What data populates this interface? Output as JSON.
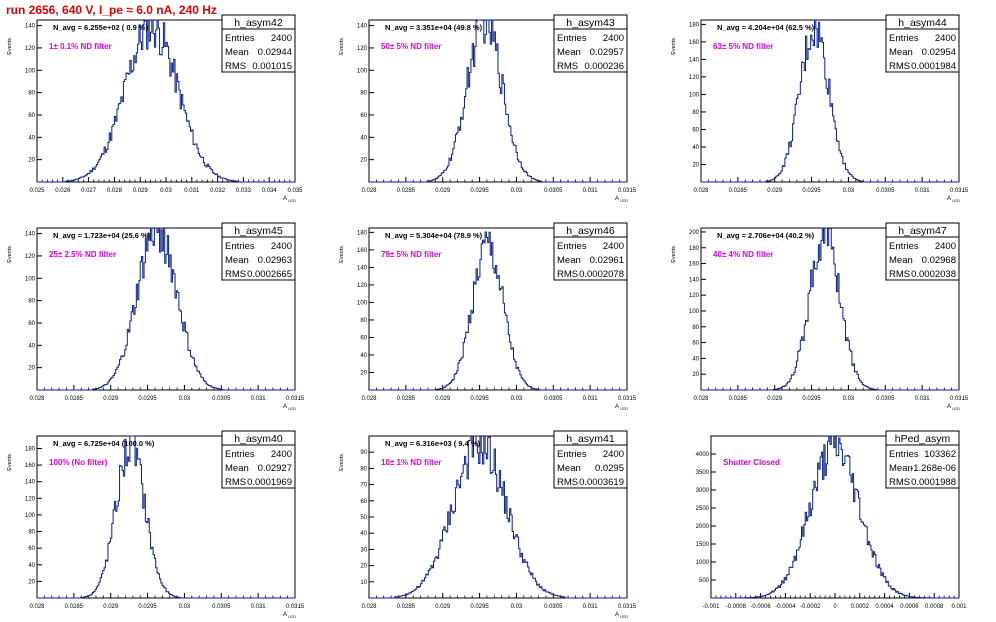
{
  "page": {
    "title": "run 2656,   640 V, I_pe ≈ 6.0 nA, 240 Hz"
  },
  "chart_data": [
    {
      "type": "histogram",
      "name": "h_asym42",
      "navg": "N_avg = 6.255e+02 ( 0.9 %)",
      "annotation": "1± 0.1% ND filter",
      "entries": "2400",
      "mean": "0.02944",
      "rms": "0.001015",
      "mean_val": 0.02944,
      "rms_val": 0.001015,
      "peak": 140,
      "xlim": [
        0.025,
        0.035
      ],
      "ylim": [
        0,
        145
      ],
      "xticks": [
        "0.025",
        "0.026",
        "0.027",
        "0.028",
        "0.029",
        "0.03",
        "0.031",
        "0.032",
        "0.033",
        "0.034",
        "0.035"
      ],
      "yticks": [
        "20",
        "40",
        "60",
        "80",
        "100",
        "120",
        "140"
      ],
      "xlabel": "A_LED",
      "ylabel": "Events"
    },
    {
      "type": "histogram",
      "name": "h_asym43",
      "navg": "N_avg = 3.351e+04 (49.8 %)",
      "annotation": "50± 5% ND filter",
      "entries": "2400",
      "mean": "0.02957",
      "rms": "0.000236",
      "mean_val": 0.02957,
      "rms_val": 0.000236,
      "peak": 145,
      "xlim": [
        0.028,
        0.0315
      ],
      "ylim": [
        0,
        145
      ],
      "xticks": [
        "0.028",
        "0.0285",
        "0.029",
        "0.0295",
        "0.03",
        "0.0305",
        "0.031",
        "0.0315"
      ],
      "yticks": [
        "20",
        "40",
        "60",
        "80",
        "100",
        "120",
        "140"
      ],
      "xlabel": "A_LED",
      "ylabel": "Events"
    },
    {
      "type": "histogram",
      "name": "h_asym44",
      "navg": "N_avg = 4.204e+04 (62.5 %)",
      "annotation": "63± 5% ND filter",
      "entries": "2400",
      "mean": "0.02954",
      "rms": "0.0001984",
      "mean_val": 0.02954,
      "rms_val": 0.0001984,
      "peak": 175,
      "xlim": [
        0.028,
        0.0315
      ],
      "ylim": [
        0,
        185
      ],
      "xticks": [
        "0.028",
        "0.0285",
        "0.029",
        "0.0295",
        "0.03",
        "0.0305",
        "0.031",
        "0.0315"
      ],
      "yticks": [
        "20",
        "40",
        "60",
        "80",
        "100",
        "120",
        "140",
        "160",
        "180"
      ],
      "xlabel": "A_LED",
      "ylabel": "Events"
    },
    {
      "type": "histogram",
      "name": "h_asym45",
      "navg": "N_avg = 1.723e+04 (25.6 %)",
      "annotation": "25± 2.5% ND filter",
      "entries": "2400",
      "mean": "0.02963",
      "rms": "0.0002665",
      "mean_val": 0.02963,
      "rms_val": 0.0002665,
      "peak": 145,
      "xlim": [
        0.028,
        0.0315
      ],
      "ylim": [
        0,
        145
      ],
      "xticks": [
        "0.028",
        "0.0285",
        "0.029",
        "0.0295",
        "0.03",
        "0.0305",
        "0.031",
        "0.0315"
      ],
      "yticks": [
        "20",
        "40",
        "60",
        "80",
        "100",
        "120",
        "140"
      ],
      "xlabel": "A_LED",
      "ylabel": "Events"
    },
    {
      "type": "histogram",
      "name": "h_asym46",
      "navg": "N_avg = 5.304e+04 (78.9 %)",
      "annotation": "79± 5% ND filter",
      "entries": "2400",
      "mean": "0.02961",
      "rms": "0.0002078",
      "mean_val": 0.02961,
      "rms_val": 0.0002078,
      "peak": 165,
      "xlim": [
        0.028,
        0.0315
      ],
      "ylim": [
        0,
        185
      ],
      "xticks": [
        "0.028",
        "0.0285",
        "0.029",
        "0.0295",
        "0.03",
        "0.0305",
        "0.031",
        "0.0315"
      ],
      "yticks": [
        "20",
        "40",
        "60",
        "80",
        "100",
        "120",
        "140",
        "160",
        "180"
      ],
      "xlabel": "A_LED",
      "ylabel": "Events"
    },
    {
      "type": "histogram",
      "name": "h_asym47",
      "navg": "N_avg = 2.706e+04 (40.2 %)",
      "annotation": "40± 4% ND filter",
      "entries": "2400",
      "mean": "0.02968",
      "rms": "0.0002038",
      "mean_val": 0.02968,
      "rms_val": 0.0002038,
      "peak": 200,
      "xlim": [
        0.028,
        0.0315
      ],
      "ylim": [
        0,
        205
      ],
      "xticks": [
        "0.028",
        "0.0285",
        "0.029",
        "0.0295",
        "0.03",
        "0.0305",
        "0.031",
        "0.0315"
      ],
      "yticks": [
        "20",
        "40",
        "60",
        "80",
        "100",
        "120",
        "140",
        "160",
        "180",
        "200"
      ],
      "xlabel": "A_LED",
      "ylabel": "Events"
    },
    {
      "type": "histogram",
      "name": "h_asym40",
      "navg": "N_avg = 6.725e+04 (100.0 %)",
      "annotation": "100% (No filter)",
      "entries": "2400",
      "mean": "0.02927",
      "rms": "0.0001969",
      "mean_val": 0.02927,
      "rms_val": 0.0001969,
      "peak": 185,
      "xlim": [
        0.028,
        0.0315
      ],
      "ylim": [
        0,
        195
      ],
      "xticks": [
        "0.028",
        "0.0285",
        "0.029",
        "0.0295",
        "0.03",
        "0.0305",
        "0.031",
        "0.0315"
      ],
      "yticks": [
        "20",
        "40",
        "60",
        "80",
        "100",
        "120",
        "140",
        "160",
        "180"
      ],
      "xlabel": "A_LED",
      "ylabel": "Events"
    },
    {
      "type": "histogram",
      "name": "h_asym41",
      "navg": "N_avg = 6.316e+03 ( 9.4 %)",
      "annotation": "10± 1% ND filter",
      "entries": "2400",
      "mean": "0.0295",
      "rms": "0.0003619",
      "mean_val": 0.0295,
      "rms_val": 0.0003619,
      "peak": 95,
      "xlim": [
        0.028,
        0.0315
      ],
      "ylim": [
        0,
        100
      ],
      "xticks": [
        "0.028",
        "0.0285",
        "0.029",
        "0.0295",
        "0.03",
        "0.0305",
        "0.031",
        "0.0315"
      ],
      "yticks": [
        "10",
        "20",
        "30",
        "40",
        "50",
        "60",
        "70",
        "80",
        "90"
      ],
      "xlabel": "A_LED",
      "ylabel": "Events"
    },
    {
      "type": "histogram",
      "name": "hPed_asym",
      "navg": "",
      "annotation": "Shutter Closed",
      "entries": "103362",
      "mean": "-1.268e-06",
      "rms": "0.0001988",
      "mean_val": -1.268e-06,
      "rms_val": 0.0001988,
      "peak": 4150,
      "xlim": [
        -0.001,
        0.001
      ],
      "ylim": [
        0,
        4500
      ],
      "xticks": [
        "-0.001",
        "-0.0008",
        "-0.0006",
        "-0.0004",
        "-0.0002",
        "0",
        "0.0002",
        "0.0004",
        "0.0006",
        "0.0008",
        "0.001"
      ],
      "yticks": [
        "500",
        "1000",
        "1500",
        "2000",
        "2500",
        "3000",
        "3500",
        "4000"
      ],
      "xlabel": "",
      "ylabel": ""
    }
  ],
  "stats_labels": {
    "entries": "Entries",
    "mean": "Mean",
    "rms": "RMS"
  }
}
